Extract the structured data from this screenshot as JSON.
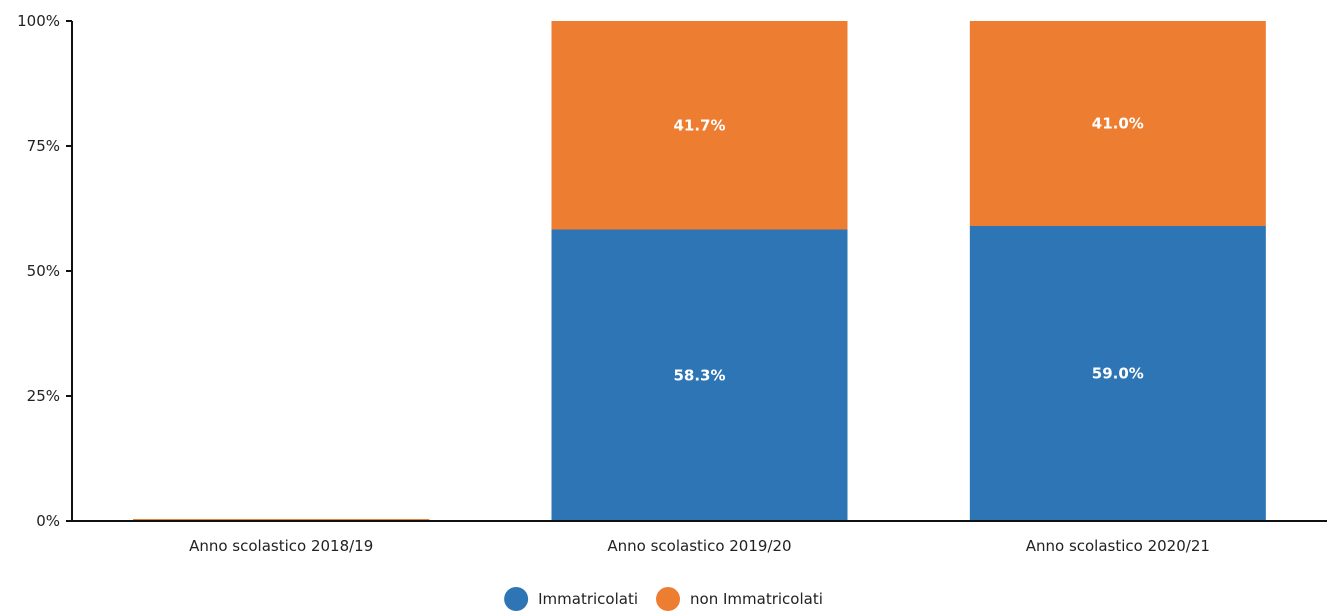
{
  "chart_data": {
    "type": "bar",
    "stacked": true,
    "percent": true,
    "categories": [
      "Anno scolastico 2018/19",
      "Anno scolastico 2019/20",
      "Anno scolastico 2020/21"
    ],
    "series": [
      {
        "name": "Immatricolati",
        "values": [
          0,
          58.3,
          59.0
        ],
        "labels": [
          "",
          "58.3%",
          "59.0%"
        ]
      },
      {
        "name": "non Immatricolati",
        "values": [
          0,
          41.7,
          41.0
        ],
        "labels": [
          "",
          "41.7%",
          "41.0%"
        ]
      }
    ],
    "ylim": [
      0,
      100
    ],
    "yticks": [
      0,
      25,
      50,
      75,
      100
    ],
    "ytick_labels": [
      "0%",
      "25%",
      "50%",
      "75%",
      "100%"
    ],
    "grid": false,
    "legend_position": "bottom-center",
    "colors": {
      "Immatricolati": "#2e75b6",
      "non Immatricolati": "#ed7d31"
    },
    "title": "",
    "xlabel": "",
    "ylabel": ""
  }
}
